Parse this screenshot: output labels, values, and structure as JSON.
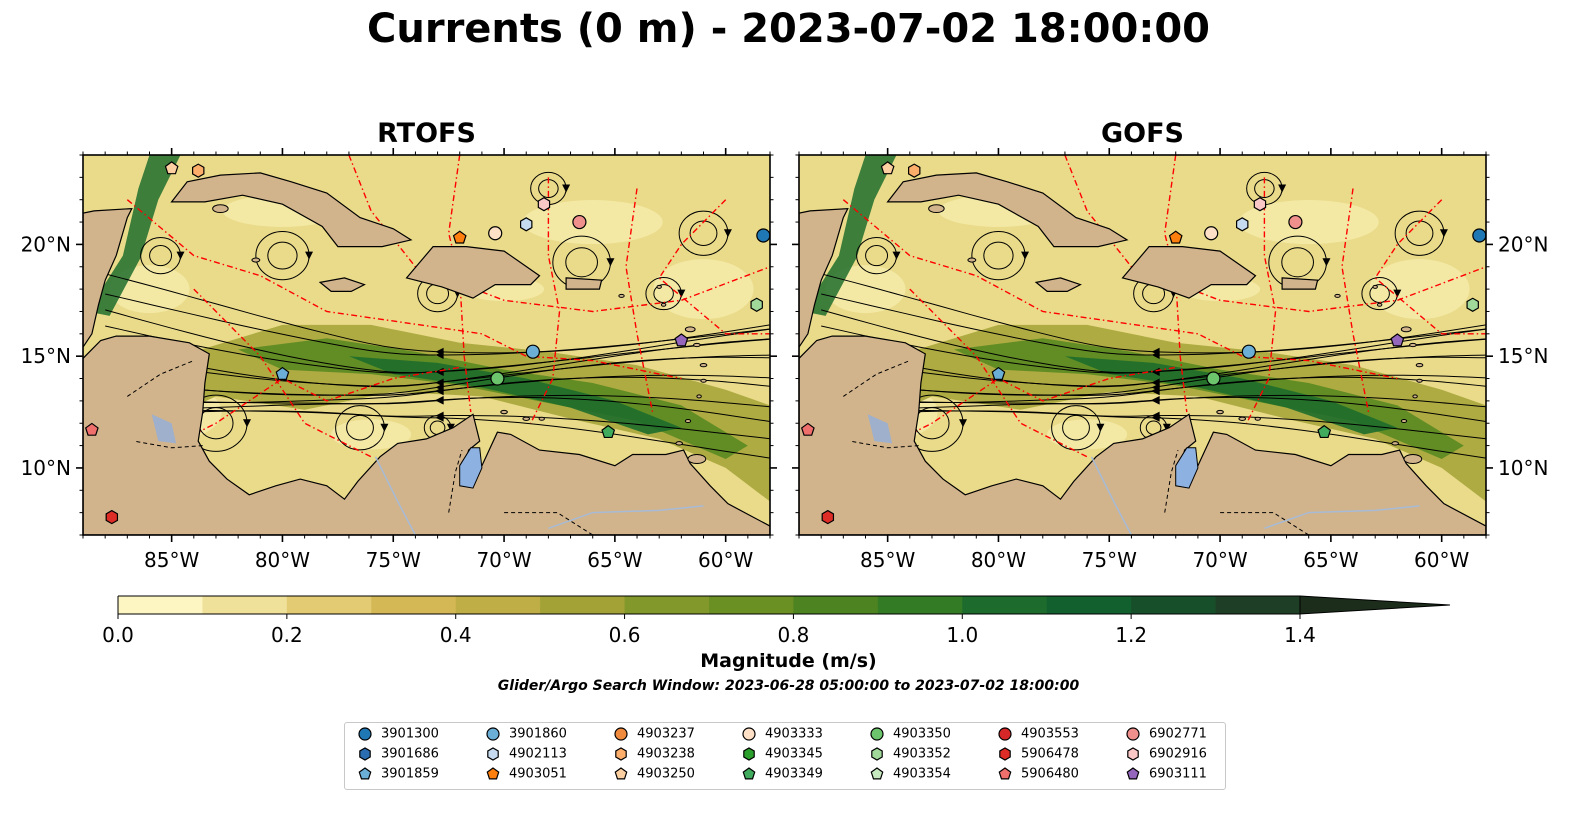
{
  "figure": {
    "title": "Currents (0 m) - 2023-07-02 18:00:00"
  },
  "panels": [
    {
      "title": "RTOFS"
    },
    {
      "title": "GOFS"
    }
  ],
  "axes": {
    "lon_ticks": [
      "85°W",
      "80°W",
      "75°W",
      "70°W",
      "65°W",
      "60°W"
    ],
    "lat_ticks": [
      "20°N",
      "15°N",
      "10°N"
    ]
  },
  "colorbar": {
    "label": "Magnitude (m/s)",
    "ticks": [
      "0.0",
      "0.2",
      "0.4",
      "0.6",
      "0.8",
      "1.0",
      "1.2",
      "1.4"
    ],
    "colors": [
      "#fdf6c3",
      "#efe09a",
      "#e2cb72",
      "#d4b856",
      "#bfad45",
      "#a2a236",
      "#83982a",
      "#6a8f22",
      "#4d8320",
      "#337b25",
      "#1d6c2d",
      "#12602e",
      "#184f2b",
      "#1e3e25",
      "#1c2d1c"
    ]
  },
  "search_window": "Glider/Argo Search Window: 2023-06-28 05:00:00 to 2023-07-02 18:00:00",
  "colors": {
    "land": "#d2b48c",
    "lake": "#8db2e2",
    "river": "#a7bbd6",
    "eez": "#ff0000"
  },
  "legend": [
    {
      "id": "3901300",
      "marker": "circle",
      "color": "#1f77b4"
    },
    {
      "id": "3901686",
      "marker": "hexagon",
      "color": "#2a6db0"
    },
    {
      "id": "3901859",
      "marker": "pentagon",
      "color": "#6baed6"
    },
    {
      "id": "3901860",
      "marker": "circle",
      "color": "#6baed6"
    },
    {
      "id": "4902113",
      "marker": "hexagon",
      "color": "#c6dbef"
    },
    {
      "id": "4903051",
      "marker": "pentagon",
      "color": "#ff7f0e"
    },
    {
      "id": "4903237",
      "marker": "circle",
      "color": "#f08a3c"
    },
    {
      "id": "4903238",
      "marker": "hexagon",
      "color": "#fdae6b"
    },
    {
      "id": "4903250",
      "marker": "pentagon",
      "color": "#fdd0a2"
    },
    {
      "id": "4903333",
      "marker": "circle",
      "color": "#fde0c5"
    },
    {
      "id": "4903345",
      "marker": "hexagon",
      "color": "#2ca02c"
    },
    {
      "id": "4903349",
      "marker": "pentagon",
      "color": "#41ab5d"
    },
    {
      "id": "4903350",
      "marker": "circle",
      "color": "#6cc46c"
    },
    {
      "id": "4903352",
      "marker": "hexagon",
      "color": "#a1d99b"
    },
    {
      "id": "4903354",
      "marker": "pentagon",
      "color": "#c7e9c0"
    },
    {
      "id": "4903553",
      "marker": "circle",
      "color": "#d62728"
    },
    {
      "id": "5906478",
      "marker": "hexagon",
      "color": "#de2d26"
    },
    {
      "id": "5906480",
      "marker": "pentagon",
      "color": "#ef6f6c"
    },
    {
      "id": "6902771",
      "marker": "circle",
      "color": "#f0908d"
    },
    {
      "id": "6902916",
      "marker": "hexagon",
      "color": "#f9c7c5"
    },
    {
      "id": "6903111",
      "marker": "pentagon",
      "color": "#9467bd"
    }
  ],
  "chart_data": {
    "type": "map",
    "projection": "PlateCarree",
    "lon_range": [
      -89,
      -58
    ],
    "lat_range": [
      7,
      24
    ],
    "variable": "surface current magnitude",
    "colorbar_range": [
      0.0,
      1.5
    ],
    "colorbar_extend": "max",
    "floats": [
      {
        "id": "3901300",
        "lon": -58.3,
        "lat": 20.4
      },
      {
        "id": "3901859",
        "lon": -80.0,
        "lat": 14.2
      },
      {
        "id": "3901860",
        "lon": -68.7,
        "lat": 15.2
      },
      {
        "id": "4902113",
        "lon": -69.0,
        "lat": 20.9
      },
      {
        "id": "4903051",
        "lon": -72.0,
        "lat": 20.3
      },
      {
        "id": "4903238",
        "lon": -83.8,
        "lat": 23.3
      },
      {
        "id": "4903250",
        "lon": -85.0,
        "lat": 23.4
      },
      {
        "id": "4903333",
        "lon": -70.4,
        "lat": 20.5
      },
      {
        "id": "4903349",
        "lon": -65.3,
        "lat": 11.6
      },
      {
        "id": "4903350",
        "lon": -70.3,
        "lat": 14.0
      },
      {
        "id": "4903352",
        "lon": -58.6,
        "lat": 17.3
      },
      {
        "id": "5906478",
        "lon": -87.7,
        "lat": 7.8
      },
      {
        "id": "5906480",
        "lon": -88.6,
        "lat": 11.7
      },
      {
        "id": "6902771",
        "lon": -66.6,
        "lat": 21.0
      },
      {
        "id": "6902916",
        "lon": -68.2,
        "lat": 21.8
      },
      {
        "id": "6903111",
        "lon": -62.0,
        "lat": 15.7
      }
    ]
  }
}
